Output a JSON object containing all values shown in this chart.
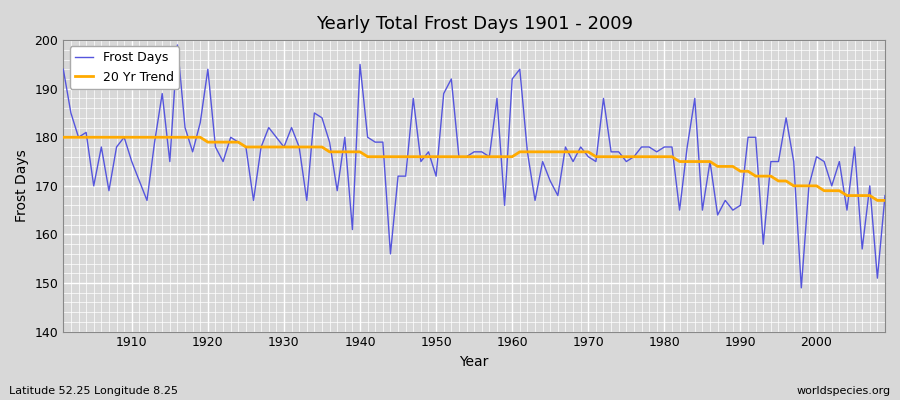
{
  "title": "Yearly Total Frost Days 1901 - 2009",
  "xlabel": "Year",
  "ylabel": "Frost Days",
  "footnote_left": "Latitude 52.25 Longitude 8.25",
  "footnote_right": "worldspecies.org",
  "line_color": "#5555dd",
  "trend_color": "#ffaa00",
  "bg_color": "#d8d8d8",
  "plot_bg_color": "#d8d8d8",
  "ylim": [
    140,
    200
  ],
  "xlim": [
    1901,
    2009
  ],
  "years": [
    1901,
    1902,
    1903,
    1904,
    1905,
    1906,
    1907,
    1908,
    1909,
    1910,
    1911,
    1912,
    1913,
    1914,
    1915,
    1916,
    1917,
    1918,
    1919,
    1920,
    1921,
    1922,
    1923,
    1924,
    1925,
    1926,
    1927,
    1928,
    1929,
    1930,
    1931,
    1932,
    1933,
    1934,
    1935,
    1936,
    1937,
    1938,
    1939,
    1940,
    1941,
    1942,
    1943,
    1944,
    1945,
    1946,
    1947,
    1948,
    1949,
    1950,
    1951,
    1952,
    1953,
    1954,
    1955,
    1956,
    1957,
    1958,
    1959,
    1960,
    1961,
    1962,
    1963,
    1964,
    1965,
    1966,
    1967,
    1968,
    1969,
    1970,
    1971,
    1972,
    1973,
    1974,
    1975,
    1976,
    1977,
    1978,
    1979,
    1980,
    1981,
    1982,
    1983,
    1984,
    1985,
    1986,
    1987,
    1988,
    1989,
    1990,
    1991,
    1992,
    1993,
    1994,
    1995,
    1996,
    1997,
    1998,
    1999,
    2000,
    2001,
    2002,
    2003,
    2004,
    2005,
    2006,
    2007,
    2008,
    2009
  ],
  "frost_days": [
    194,
    185,
    180,
    181,
    170,
    178,
    169,
    178,
    180,
    175,
    171,
    167,
    179,
    189,
    175,
    199,
    182,
    177,
    183,
    194,
    178,
    175,
    180,
    179,
    178,
    167,
    178,
    182,
    180,
    178,
    182,
    178,
    167,
    185,
    184,
    179,
    169,
    180,
    161,
    195,
    180,
    179,
    179,
    156,
    172,
    172,
    188,
    175,
    177,
    172,
    189,
    192,
    176,
    176,
    177,
    177,
    176,
    188,
    166,
    192,
    194,
    177,
    167,
    175,
    171,
    168,
    178,
    175,
    178,
    176,
    175,
    188,
    177,
    177,
    175,
    176,
    178,
    178,
    177,
    178,
    178,
    165,
    178,
    188,
    165,
    175,
    164,
    167,
    165,
    166,
    180,
    180,
    158,
    175,
    175,
    184,
    175,
    149,
    170,
    176,
    175,
    170,
    175,
    165,
    178,
    157,
    170,
    151,
    168
  ],
  "trend_days": [
    180,
    180,
    180,
    180,
    180,
    180,
    180,
    180,
    180,
    180,
    180,
    180,
    180,
    180,
    180,
    180,
    180,
    180,
    180,
    179,
    179,
    179,
    179,
    179,
    178,
    178,
    178,
    178,
    178,
    178,
    178,
    178,
    178,
    178,
    178,
    177,
    177,
    177,
    177,
    177,
    176,
    176,
    176,
    176,
    176,
    176,
    176,
    176,
    176,
    176,
    176,
    176,
    176,
    176,
    176,
    176,
    176,
    176,
    176,
    176,
    177,
    177,
    177,
    177,
    177,
    177,
    177,
    177,
    177,
    177,
    176,
    176,
    176,
    176,
    176,
    176,
    176,
    176,
    176,
    176,
    176,
    175,
    175,
    175,
    175,
    175,
    174,
    174,
    174,
    173,
    173,
    172,
    172,
    172,
    171,
    171,
    170,
    170,
    170,
    170,
    169,
    169,
    169,
    168,
    168,
    168,
    168,
    167,
    167
  ],
  "legend_loc": "upper left"
}
